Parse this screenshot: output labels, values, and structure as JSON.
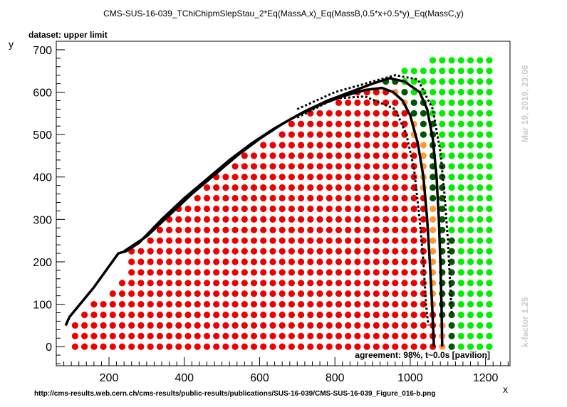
{
  "chart_data": {
    "type": "scatter",
    "title": "CMS-SUS-16-039_TChiChipmSlepStau_2*Eq(MassA,x)_Eq(MassB,0.5*x+0.5*y)_Eq(MassC,y)",
    "subtitle": "dataset: upper limit",
    "xlabel": "x",
    "ylabel": "y",
    "xlim": [
      60,
      1265
    ],
    "ylim": [
      -45,
      720
    ],
    "x_ticks": [
      200,
      400,
      600,
      800,
      1000,
      1200
    ],
    "y_ticks": [
      0,
      100,
      200,
      300,
      400,
      500,
      600,
      700
    ],
    "grid": false,
    "annotation": "agreement: 98%, t~0.0s [pavilion]",
    "side_text_date": "Mar 19, 2019, 23:06",
    "side_text_kfactor": "k-factor 1.25",
    "footer": "http://cms-results.web.cern.ch/cms-results/public-results/publications/SUS-16-039/CMS-SUS-16-039_Figure_016-b.png",
    "colors": {
      "excluded": "#ee0000",
      "boundary": "#ff9933",
      "allowed_near": "#005500",
      "allowed": "#00ee00",
      "contour": "#000000"
    },
    "grid_points": {
      "x_start": 110,
      "x_step": 25,
      "y_start": 0,
      "y_step": 25,
      "x_max": 1225,
      "y_max": 690
    },
    "upper_edge": [
      [
        100,
        60
      ],
      [
        250,
        220
      ],
      [
        300,
        260
      ],
      [
        450,
        380
      ],
      [
        600,
        480
      ],
      [
        700,
        535
      ],
      [
        800,
        580
      ],
      [
        900,
        620
      ],
      [
        950,
        640
      ],
      [
        1000,
        660
      ],
      [
        1050,
        680
      ],
      [
        1100,
        690
      ],
      [
        1225,
        690
      ]
    ],
    "exclusion_frontier": [
      [
        100,
        50
      ],
      [
        250,
        225
      ],
      [
        500,
        425
      ],
      [
        700,
        535
      ],
      [
        850,
        595
      ],
      [
        930,
        610
      ],
      [
        980,
        580
      ],
      [
        1020,
        480
      ],
      [
        1040,
        360
      ],
      [
        1055,
        230
      ],
      [
        1065,
        100
      ],
      [
        1070,
        0
      ]
    ],
    "series": [
      {
        "name": "observed contour",
        "style": "solid",
        "points": [
          [
            85,
            50
          ],
          [
            95,
            70
          ],
          [
            160,
            140
          ],
          [
            225,
            220
          ],
          [
            245,
            225
          ],
          [
            280,
            245
          ],
          [
            340,
            300
          ],
          [
            400,
            350
          ],
          [
            460,
            395
          ],
          [
            520,
            440
          ],
          [
            580,
            480
          ],
          [
            640,
            515
          ],
          [
            700,
            545
          ],
          [
            760,
            570
          ],
          [
            820,
            590
          ],
          [
            880,
            605
          ],
          [
            925,
            610
          ],
          [
            955,
            600
          ],
          [
            980,
            580
          ],
          [
            1000,
            545
          ],
          [
            1020,
            480
          ],
          [
            1035,
            400
          ],
          [
            1045,
            300
          ],
          [
            1052,
            200
          ],
          [
            1058,
            100
          ],
          [
            1063,
            0
          ]
        ]
      },
      {
        "name": "expected contour",
        "style": "solid",
        "points": [
          [
            240,
            225
          ],
          [
            300,
            260
          ],
          [
            360,
            310
          ],
          [
            420,
            360
          ],
          [
            480,
            405
          ],
          [
            540,
            450
          ],
          [
            600,
            490
          ],
          [
            660,
            525
          ],
          [
            720,
            555
          ],
          [
            780,
            580
          ],
          [
            840,
            600
          ],
          [
            900,
            620
          ],
          [
            945,
            633
          ],
          [
            985,
            625
          ],
          [
            1025,
            600
          ],
          [
            1045,
            560
          ],
          [
            1060,
            490
          ],
          [
            1070,
            400
          ],
          [
            1076,
            300
          ],
          [
            1080,
            200
          ],
          [
            1083,
            100
          ],
          [
            1085,
            0
          ]
        ]
      },
      {
        "name": "expected band lower",
        "style": "dotted",
        "points": [
          [
            700,
            540
          ],
          [
            800,
            585
          ],
          [
            880,
            590
          ],
          [
            960,
            560
          ],
          [
            990,
            500
          ],
          [
            1010,
            420
          ],
          [
            1025,
            300
          ],
          [
            1035,
            200
          ],
          [
            1042,
            100
          ],
          [
            1048,
            50
          ]
        ]
      },
      {
        "name": "expected band upper",
        "style": "dotted",
        "points": [
          [
            700,
            560
          ],
          [
            800,
            600
          ],
          [
            900,
            625
          ],
          [
            960,
            640
          ],
          [
            1020,
            630
          ],
          [
            1060,
            560
          ],
          [
            1080,
            460
          ],
          [
            1092,
            350
          ],
          [
            1100,
            250
          ],
          [
            1106,
            150
          ],
          [
            1110,
            80
          ]
        ]
      }
    ]
  }
}
